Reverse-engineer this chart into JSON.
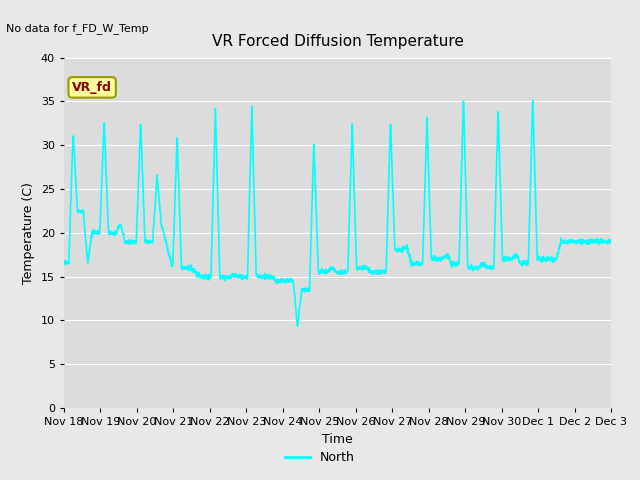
{
  "title": "VR Forced Diffusion Temperature",
  "no_data_label": "No data for f_FD_W_Temp",
  "vr_fd_label": "VR_fd",
  "ylabel": "Temperature (C)",
  "xlabel": "Time",
  "ylim": [
    0,
    40
  ],
  "yticks": [
    0,
    5,
    10,
    15,
    20,
    25,
    30,
    35,
    40
  ],
  "line_color": "#00FFFF",
  "line_width": 1.2,
  "bg_color": "#DCDCDC",
  "fig_bg_color": "#E8E8E8",
  "legend_label": "North",
  "xtick_labels": [
    "Nov 18",
    "Nov 19",
    "Nov 20",
    "Nov 21",
    "Nov 22",
    "Nov 23",
    "Nov 24",
    "Nov 25",
    "Nov 26",
    "Nov 27",
    "Nov 28",
    "Nov 29",
    "Nov 30",
    "Dec 1",
    "Dec 2",
    "Dec 3"
  ],
  "vr_fd_box_facecolor": "#FFFF99",
  "vr_fd_box_edgecolor": "#999900",
  "vr_fd_text_color": "#880000",
  "peaks": [
    {
      "day": 0.25,
      "peak": 31.5,
      "trough_before": 16.5,
      "trough_after": 22.5
    },
    {
      "day": 0.65,
      "peak": 16.5,
      "trough_before": 22.5,
      "trough_after": 20.0
    },
    {
      "day": 1.1,
      "peak": 32.7,
      "trough_before": 20.0,
      "trough_after": 20.0
    },
    {
      "day": 1.55,
      "peak": 21.0,
      "trough_before": 20.0,
      "trough_after": 19.0
    },
    {
      "day": 2.1,
      "peak": 32.5,
      "trough_before": 19.0,
      "trough_after": 19.0
    },
    {
      "day": 2.55,
      "peak": 26.5,
      "trough_before": 19.0,
      "trough_after": 21.0
    },
    {
      "day": 3.1,
      "peak": 31.0,
      "trough_before": 16.0,
      "trough_after": 16.0
    },
    {
      "day": 3.6,
      "peak": 15.5,
      "trough_before": 16.0,
      "trough_after": 15.0
    },
    {
      "day": 4.15,
      "peak": 34.3,
      "trough_before": 15.0,
      "trough_after": 15.0
    },
    {
      "day": 4.65,
      "peak": 15.2,
      "trough_before": 15.0,
      "trough_after": 15.0
    },
    {
      "day": 5.15,
      "peak": 34.5,
      "trough_before": 15.0,
      "trough_after": 15.0
    },
    {
      "day": 5.7,
      "peak": 15.0,
      "trough_before": 15.0,
      "trough_after": 14.5
    },
    {
      "day": 6.4,
      "peak": 9.5,
      "trough_before": 14.5,
      "trough_after": 13.5
    },
    {
      "day": 6.85,
      "peak": 30.5,
      "trough_before": 13.5,
      "trough_after": 15.5
    },
    {
      "day": 7.35,
      "peak": 16.0,
      "trough_before": 15.5,
      "trough_after": 15.5
    },
    {
      "day": 7.9,
      "peak": 32.5,
      "trough_before": 15.5,
      "trough_after": 16.0
    },
    {
      "day": 8.4,
      "peak": 15.5,
      "trough_before": 16.0,
      "trough_after": 15.5
    },
    {
      "day": 8.95,
      "peak": 32.7,
      "trough_before": 15.5,
      "trough_after": 18.0
    },
    {
      "day": 9.4,
      "peak": 18.5,
      "trough_before": 18.0,
      "trough_after": 16.5
    },
    {
      "day": 9.95,
      "peak": 33.0,
      "trough_before": 16.5,
      "trough_after": 17.0
    },
    {
      "day": 10.5,
      "peak": 17.5,
      "trough_before": 17.0,
      "trough_after": 16.5
    },
    {
      "day": 10.95,
      "peak": 35.5,
      "trough_before": 16.5,
      "trough_after": 16.0
    },
    {
      "day": 11.5,
      "peak": 16.5,
      "trough_before": 16.0,
      "trough_after": 16.0
    },
    {
      "day": 11.9,
      "peak": 34.0,
      "trough_before": 16.0,
      "trough_after": 17.0
    },
    {
      "day": 12.4,
      "peak": 17.5,
      "trough_before": 17.0,
      "trough_after": 16.5
    },
    {
      "day": 12.85,
      "peak": 35.7,
      "trough_before": 16.5,
      "trough_after": 17.0
    },
    {
      "day": 13.5,
      "peak": 17.0,
      "trough_before": 17.0,
      "trough_after": 19.0
    }
  ]
}
